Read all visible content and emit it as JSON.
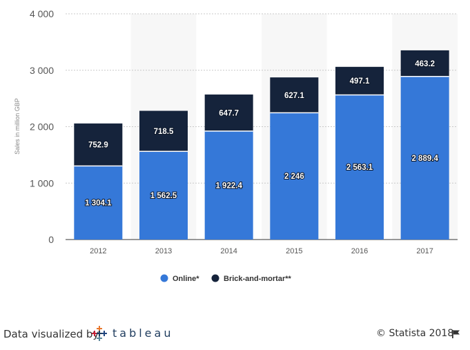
{
  "chart_data": {
    "type": "bar",
    "stacked": true,
    "categories": [
      "2012",
      "2013",
      "2014",
      "2015",
      "2016",
      "2017"
    ],
    "series": [
      {
        "name": "Online*",
        "color": "#3578d8",
        "values": [
          1304.1,
          1562.5,
          1922.4,
          2246,
          2563.1,
          2889.4
        ],
        "labels": [
          "1 304.1",
          "1 562.5",
          "1 922.4",
          "2 246",
          "2 563.1",
          "2 889.4"
        ]
      },
      {
        "name": "Brick-and-mortar**",
        "color": "#15233b",
        "values": [
          752.9,
          718.5,
          647.7,
          627.1,
          497.1,
          463.2
        ],
        "labels": [
          "752.9",
          "718.5",
          "647.7",
          "627.1",
          "497.1",
          "463.2"
        ]
      }
    ],
    "ylabel": "Sales in million GBP",
    "ylim": [
      0,
      4000
    ],
    "yticks": [
      0,
      1000,
      2000,
      3000,
      4000
    ],
    "ytick_labels": [
      "0",
      "1 000",
      "2 000",
      "3 000",
      "4 000"
    ],
    "grid": true,
    "legend_position": "bottom"
  },
  "footer": {
    "credit": "Data visualized by",
    "tableau_word": "tableau",
    "copyright": "© Statista 2018"
  }
}
